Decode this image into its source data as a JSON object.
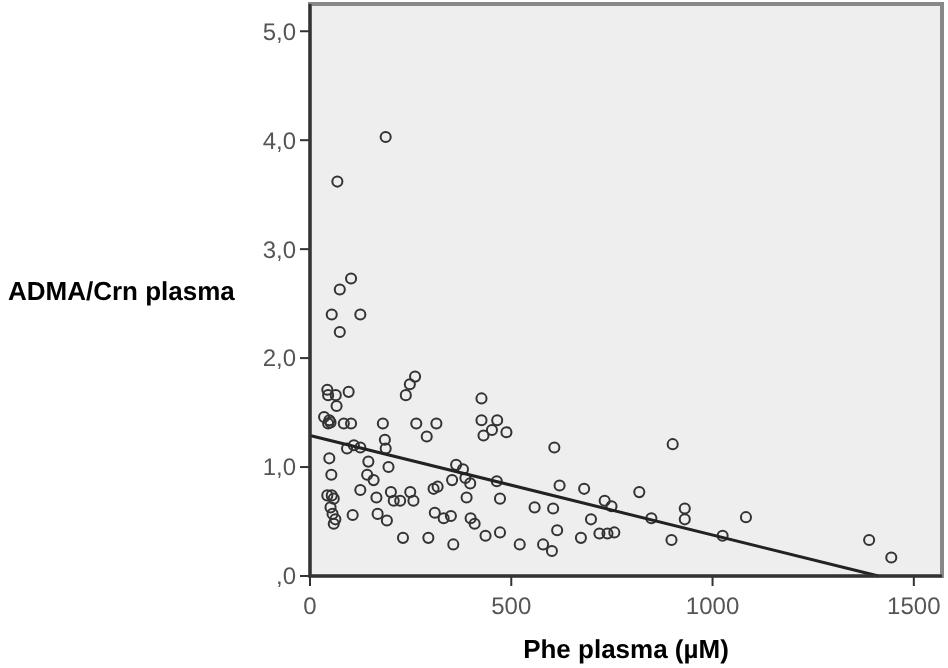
{
  "chart_data": {
    "type": "scatter",
    "xlabel": "Phe plasma (µM)",
    "ylabel": "ADMA/Crn plasma",
    "xlim": [
      0,
      1570
    ],
    "ylim": [
      0,
      5.25
    ],
    "xticks": [
      0,
      500,
      1000,
      1500
    ],
    "yticks": [
      {
        "value": 0,
        "label": ",0"
      },
      {
        "value": 1,
        "label": "1,0"
      },
      {
        "value": 2,
        "label": "2,0"
      },
      {
        "value": 3,
        "label": "3,0"
      },
      {
        "value": 4,
        "label": "4,0"
      },
      {
        "value": 5,
        "label": "5,0"
      }
    ],
    "grid": false,
    "series": [
      {
        "marker": "circle",
        "color": "#333333",
        "x": [
          188,
          68,
          102,
          74,
          54,
          125,
          74,
          43,
          45,
          64,
          96,
          66,
          35,
          48,
          45,
          51,
          84,
          102,
          92,
          109,
          125,
          48,
          53,
          43,
          54,
          59,
          51,
          56,
          63,
          59,
          106,
          125,
          142,
          145,
          158,
          165,
          168,
          181,
          186,
          188,
          191,
          195,
          201,
          208,
          224,
          231,
          238,
          248,
          261,
          249,
          257,
          264,
          290,
          294,
          307,
          314,
          310,
          317,
          332,
          350,
          353,
          363,
          380,
          386,
          389,
          398,
          399,
          409,
          356,
          426,
          426,
          431,
          452,
          465,
          488,
          464,
          472,
          472,
          436,
          521,
          558,
          579,
          601,
          607,
          604,
          614,
          620,
          673,
          681,
          698,
          719,
          732,
          749,
          739,
          756,
          818,
          848,
          898,
          901,
          931,
          931,
          1025,
          1083,
          1389,
          1444
        ],
        "values": [
          4.03,
          3.62,
          2.73,
          2.63,
          2.4,
          2.4,
          2.24,
          1.71,
          1.66,
          1.66,
          1.69,
          1.56,
          1.46,
          1.43,
          1.4,
          1.41,
          1.4,
          1.4,
          1.17,
          1.2,
          1.18,
          1.08,
          0.93,
          0.74,
          0.74,
          0.71,
          0.63,
          0.57,
          0.52,
          0.48,
          0.56,
          0.79,
          0.93,
          1.05,
          0.88,
          0.72,
          0.57,
          1.4,
          1.25,
          1.17,
          0.51,
          1.0,
          0.77,
          0.69,
          0.69,
          0.35,
          1.66,
          1.76,
          1.83,
          0.77,
          0.69,
          1.4,
          1.28,
          0.35,
          0.8,
          1.4,
          0.58,
          0.82,
          0.53,
          0.55,
          0.88,
          1.02,
          0.98,
          0.9,
          0.72,
          0.85,
          0.53,
          0.48,
          0.29,
          1.63,
          1.43,
          1.29,
          1.34,
          1.43,
          1.32,
          0.87,
          0.71,
          0.4,
          0.37,
          0.29,
          0.63,
          0.29,
          0.23,
          1.18,
          0.62,
          0.42,
          0.83,
          0.35,
          0.8,
          0.52,
          0.39,
          0.69,
          0.64,
          0.39,
          0.4,
          0.77,
          0.53,
          0.33,
          1.21,
          0.62,
          0.52,
          0.37,
          0.54,
          0.33,
          0.17
        ]
      },
      {
        "type": "line",
        "color": "#222222",
        "x": [
          0,
          1412
        ],
        "values": [
          1.29,
          0
        ]
      }
    ]
  }
}
